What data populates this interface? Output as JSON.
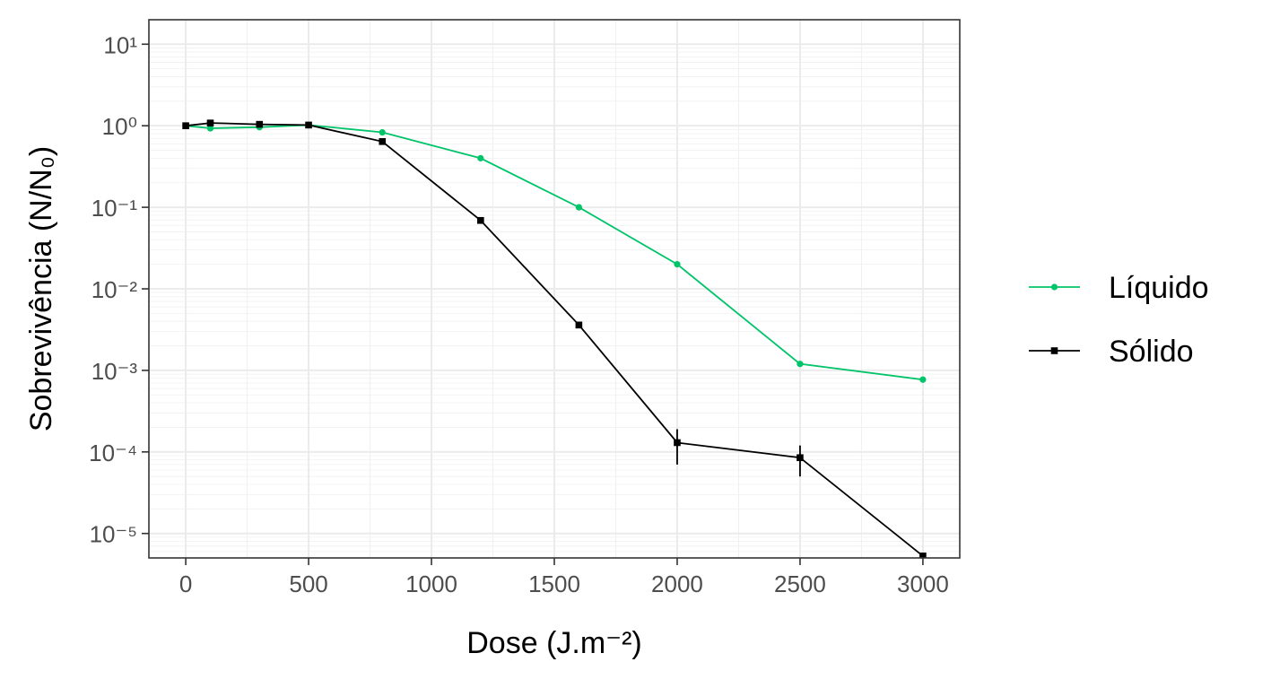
{
  "chart_data": {
    "type": "line",
    "xlabel": "Dose (J.m⁻²)",
    "ylabel": "Sobrevivência (N/N₀)",
    "xlim": [
      -150,
      3150
    ],
    "ylim_log10": [
      -5.3,
      1.3
    ],
    "y_scale": "log10",
    "x_ticks": [
      0,
      500,
      1000,
      1500,
      2000,
      2500,
      3000
    ],
    "x_tick_labels": [
      "0",
      "500",
      "1000",
      "1500",
      "2000",
      "2500",
      "3000"
    ],
    "y_tick_exponents": [
      1,
      0,
      -1,
      -2,
      -3,
      -4,
      -5
    ],
    "y_tick_labels": [
      "10¹",
      "10⁰",
      "10⁻¹",
      "10⁻²",
      "10⁻³",
      "10⁻⁴",
      "10⁻⁵"
    ],
    "grid": true,
    "legend_position": "right",
    "series": [
      {
        "name": "Líquido",
        "color": "#00c46a",
        "marker": "circle",
        "x": [
          0,
          100,
          300,
          500,
          800,
          1200,
          1600,
          2000,
          2500,
          3000
        ],
        "y": [
          1.0,
          0.93,
          0.96,
          1.02,
          0.83,
          0.4,
          0.1,
          0.02,
          0.0012,
          0.00077
        ]
      },
      {
        "name": "Sólido",
        "color": "#000000",
        "marker": "square",
        "x": [
          0,
          100,
          300,
          500,
          800,
          1200,
          1600,
          2000,
          2500,
          3000
        ],
        "y": [
          1.0,
          1.08,
          1.04,
          1.02,
          0.64,
          0.069,
          0.0036,
          0.00013,
          8.5e-05,
          5.3e-06
        ],
        "error_bars": [
          {
            "x": 2000,
            "low": 7e-05,
            "high": 0.00019
          },
          {
            "x": 2500,
            "low": 5e-05,
            "high": 0.00012
          }
        ]
      }
    ]
  }
}
